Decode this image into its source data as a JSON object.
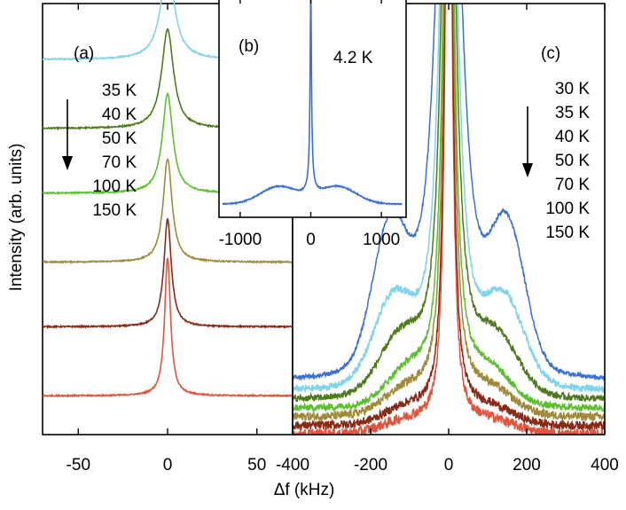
{
  "figure": {
    "ylabel": "Intensity (arb. units)",
    "xlabel": "Δf (kHz)"
  },
  "chart_data": [
    {
      "panel": "(a)",
      "type": "line",
      "title": "",
      "xlim": [
        -70,
        70
      ],
      "ylim": [
        0,
        1
      ],
      "xticks": [
        -50,
        0,
        50
      ],
      "xtick_labels": [
        "-50",
        "0",
        "50"
      ],
      "legend": [
        "35 K",
        "40 K",
        "50 K",
        "70 K",
        "100 K",
        "150 K"
      ],
      "legend_arrow": "down",
      "series": [
        {
          "name": "35 K",
          "color": "#7fd3ea",
          "baseline": 0.87,
          "peak_height": 0.22,
          "hwhm": 4.5
        },
        {
          "name": "40 K",
          "color": "#4e7a1c",
          "baseline": 0.71,
          "peak_height": 0.23,
          "hwhm": 4.0
        },
        {
          "name": "50 K",
          "color": "#5cbf2e",
          "baseline": 0.56,
          "peak_height": 0.23,
          "hwhm": 3.5
        },
        {
          "name": "70 K",
          "color": "#a08a3a",
          "baseline": 0.4,
          "peak_height": 0.24,
          "hwhm": 3.0
        },
        {
          "name": "100 K",
          "color": "#8a2a16",
          "baseline": 0.25,
          "peak_height": 0.25,
          "hwhm": 2.5
        },
        {
          "name": "150 K",
          "color": "#e0553d",
          "baseline": 0.09,
          "peak_height": 0.32,
          "hwhm": 2.0
        }
      ]
    },
    {
      "panel": "(b)",
      "type": "line",
      "annotation": "4.2 K",
      "xlim": [
        -1300,
        1350
      ],
      "ylim": [
        0,
        1
      ],
      "xticks": [
        -1000,
        0,
        1000
      ],
      "xtick_labels": [
        "-1000",
        "0",
        "1000"
      ],
      "series": [
        {
          "name": "4.2 K",
          "color": "#3b6fd6",
          "baseline": 0.06,
          "peak_height": 0.86,
          "hwhm": 12,
          "wing_centers": [
            -450,
            380
          ],
          "wing_height": 0.08,
          "wing_width": 260
        }
      ]
    },
    {
      "panel": "(c)",
      "type": "line",
      "xlim": [
        -400,
        400
      ],
      "ylim": [
        0,
        1
      ],
      "xticks": [
        -400,
        -200,
        0,
        200,
        400
      ],
      "xtick_labels": [
        "-400",
        "-200",
        "0",
        "200",
        "400"
      ],
      "legend": [
        "30 K",
        "35 K",
        "40 K",
        "50 K",
        "70 K",
        "100 K",
        "150 K"
      ],
      "legend_arrow": "down",
      "series": [
        {
          "name": "30 K",
          "color": "#3b6fd6",
          "baseline": 0.12,
          "satellite_centers": [
            -150,
            150
          ],
          "satellite_height": 0.31,
          "satellite_width": 95,
          "peak_height": 1.9,
          "hwhm": 32,
          "noise": 0.005
        },
        {
          "name": "35 K",
          "color": "#7fd3ea",
          "baseline": 0.1,
          "satellite_centers": [
            -140,
            140
          ],
          "satellite_height": 0.19,
          "satellite_width": 110,
          "peak_height": 1.9,
          "hwhm": 22,
          "noise": 0.008
        },
        {
          "name": "40 K",
          "color": "#4e7a1c",
          "baseline": 0.08,
          "satellite_centers": [
            -120,
            120
          ],
          "satellite_height": 0.13,
          "satellite_width": 120,
          "peak_height": 1.9,
          "hwhm": 18,
          "noise": 0.008
        },
        {
          "name": "50 K",
          "color": "#5cbf2e",
          "baseline": 0.06,
          "satellite_centers": [
            -100,
            100
          ],
          "satellite_height": 0.08,
          "satellite_width": 120,
          "peak_height": 1.9,
          "hwhm": 14,
          "noise": 0.008
        },
        {
          "name": "70 K",
          "color": "#a08a3a",
          "baseline": 0.04,
          "satellite_centers": [
            -100,
            100
          ],
          "satellite_height": 0.06,
          "satellite_width": 130,
          "peak_height": 1.9,
          "hwhm": 12,
          "noise": 0.01
        },
        {
          "name": "100 K",
          "color": "#8a2a16",
          "baseline": 0.02,
          "satellite_centers": [
            -100,
            100
          ],
          "satellite_height": 0.04,
          "satellite_width": 130,
          "peak_height": 1.9,
          "hwhm": 10,
          "noise": 0.01
        },
        {
          "name": "150 K",
          "color": "#e0553d",
          "baseline": 0.0,
          "satellite_centers": [
            -100,
            100
          ],
          "satellite_height": 0.03,
          "satellite_width": 140,
          "peak_height": 1.9,
          "hwhm": 9,
          "noise": 0.012
        }
      ]
    }
  ]
}
